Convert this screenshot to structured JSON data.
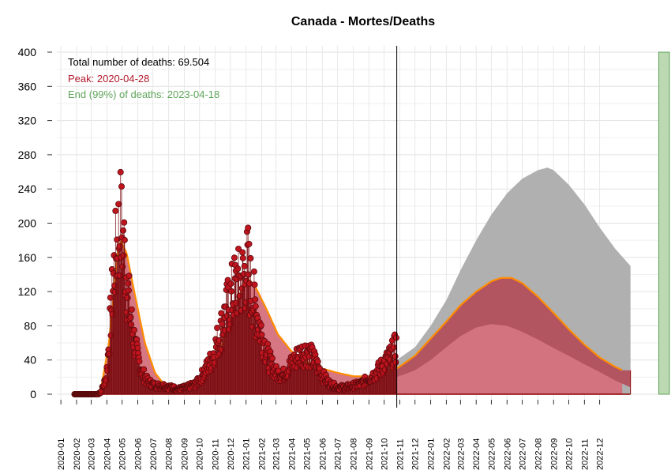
{
  "chart_data": {
    "type": "area",
    "title": "Canada - Mortes/Deaths",
    "xlabel": "",
    "ylabel": "",
    "ylim": [
      0,
      400
    ],
    "yticks": [
      0,
      40,
      80,
      120,
      160,
      200,
      240,
      280,
      320,
      360,
      400
    ],
    "xlim": [
      "2019-12-24",
      "2023-04-18"
    ],
    "xticks": [
      "2020-01",
      "2020-02",
      "2020-03",
      "2020-04",
      "2020-05",
      "2020-06",
      "2020-07",
      "2020-08",
      "2020-09",
      "2020-10",
      "2020-11",
      "2020-12",
      "2021-01",
      "2021-02",
      "2021-03",
      "2021-04",
      "2021-05",
      "2021-06",
      "2021-07",
      "2021-08",
      "2021-09",
      "2021-10",
      "2021-11",
      "2021-12",
      "2022-01",
      "2022-02",
      "2022-03",
      "2022-04",
      "2022-05",
      "2022-06",
      "2022-07",
      "2022-08",
      "2022-09",
      "2022-10",
      "2022-11",
      "2022-12"
    ],
    "grid": true,
    "annotations": {
      "total": "Total number of deaths: 69.504",
      "peak": "Peak: 2020-04-28",
      "end": "End (99%) of deaths: 2023-04-18"
    },
    "vline_date": "2021-10-26",
    "end_bar": {
      "start": "2023-03-28",
      "end": "2023-04-18",
      "height": 400
    },
    "observed_daily_deaths": {
      "dates": [
        "2020-01-28",
        "2020-03-10",
        "2020-03-20",
        "2020-03-31",
        "2020-04-08",
        "2020-04-15",
        "2020-04-22",
        "2020-04-28",
        "2020-05-05",
        "2020-05-12",
        "2020-05-20",
        "2020-05-31",
        "2020-06-10",
        "2020-06-20",
        "2020-07-05",
        "2020-07-20",
        "2020-08-05",
        "2020-08-20",
        "2020-09-05",
        "2020-09-25",
        "2020-10-10",
        "2020-10-25",
        "2020-11-10",
        "2020-11-25",
        "2020-12-10",
        "2020-12-20",
        "2020-12-30",
        "2021-01-05",
        "2021-01-10",
        "2021-01-20",
        "2021-02-01",
        "2021-02-15",
        "2021-03-01",
        "2021-03-15",
        "2021-04-01",
        "2021-04-15",
        "2021-05-01",
        "2021-05-15",
        "2021-06-01",
        "2021-06-15",
        "2021-07-01",
        "2021-07-15",
        "2021-08-01",
        "2021-08-15",
        "2021-09-01",
        "2021-09-15",
        "2021-10-01",
        "2021-10-15",
        "2021-10-25"
      ],
      "values": [
        0,
        0,
        2,
        20,
        85,
        145,
        180,
        200,
        170,
        120,
        80,
        45,
        25,
        15,
        10,
        10,
        8,
        6,
        8,
        12,
        25,
        40,
        70,
        100,
        125,
        130,
        140,
        150,
        125,
        100,
        70,
        40,
        25,
        22,
        35,
        45,
        50,
        40,
        22,
        12,
        8,
        8,
        10,
        12,
        18,
        25,
        35,
        45,
        55
      ]
    },
    "series": [
      {
        "name": "fitted",
        "color": "#ff8c00",
        "dates": [
          "2020-03-20",
          "2020-04-05",
          "2020-04-20",
          "2020-04-28",
          "2020-05-10",
          "2020-05-25",
          "2020-06-15",
          "2020-07-05",
          "2020-07-25",
          "2020-08-15",
          "2020-09-05",
          "2020-10-01",
          "2020-10-25",
          "2020-11-20",
          "2020-12-10",
          "2020-12-25",
          "2021-01-05",
          "2021-01-20",
          "2021-02-10",
          "2021-03-05",
          "2021-04-01",
          "2021-05-01",
          "2021-06-01",
          "2021-07-01",
          "2021-08-01",
          "2021-09-01",
          "2021-10-01",
          "2021-10-26",
          "2021-12-01",
          "2022-01-01",
          "2022-02-01",
          "2022-03-01",
          "2022-04-01",
          "2022-05-01",
          "2022-05-20",
          "2022-06-10",
          "2022-07-01",
          "2022-08-01",
          "2022-09-01",
          "2022-10-01",
          "2022-11-01",
          "2022-12-01",
          "2023-01-01",
          "2023-01-15"
        ],
        "values": [
          5,
          60,
          155,
          180,
          165,
          120,
          60,
          25,
          10,
          7,
          8,
          14,
          30,
          65,
          100,
          125,
          135,
          125,
          100,
          70,
          50,
          38,
          30,
          25,
          21,
          21,
          24,
          30,
          45,
          65,
          85,
          104,
          120,
          132,
          136,
          136,
          130,
          114,
          95,
          76,
          58,
          43,
          32,
          28
        ]
      },
      {
        "name": "projection_upper",
        "color": "#b0b0b0",
        "dates": [
          "2021-10-26",
          "2021-12-01",
          "2022-01-01",
          "2022-02-01",
          "2022-03-01",
          "2022-04-01",
          "2022-05-01",
          "2022-06-01",
          "2022-07-01",
          "2022-08-01",
          "2022-08-20",
          "2022-09-01",
          "2022-10-01",
          "2022-11-01",
          "2022-12-01",
          "2023-01-01",
          "2023-01-31"
        ],
        "values": [
          40,
          55,
          80,
          110,
          145,
          180,
          210,
          235,
          252,
          262,
          265,
          262,
          245,
          222,
          195,
          170,
          150
        ]
      },
      {
        "name": "projection_lower",
        "color": "#b25561",
        "dates": [
          "2021-10-26",
          "2021-12-01",
          "2022-01-01",
          "2022-02-01",
          "2022-03-01",
          "2022-04-01",
          "2022-05-01",
          "2022-06-01",
          "2022-07-01",
          "2022-08-01",
          "2022-09-01",
          "2022-10-01",
          "2022-11-01",
          "2022-12-01",
          "2023-01-01",
          "2023-01-31"
        ],
        "values": [
          20,
          28,
          40,
          55,
          68,
          78,
          82,
          80,
          73,
          64,
          54,
          45,
          35,
          26,
          16,
          8
        ]
      }
    ]
  }
}
